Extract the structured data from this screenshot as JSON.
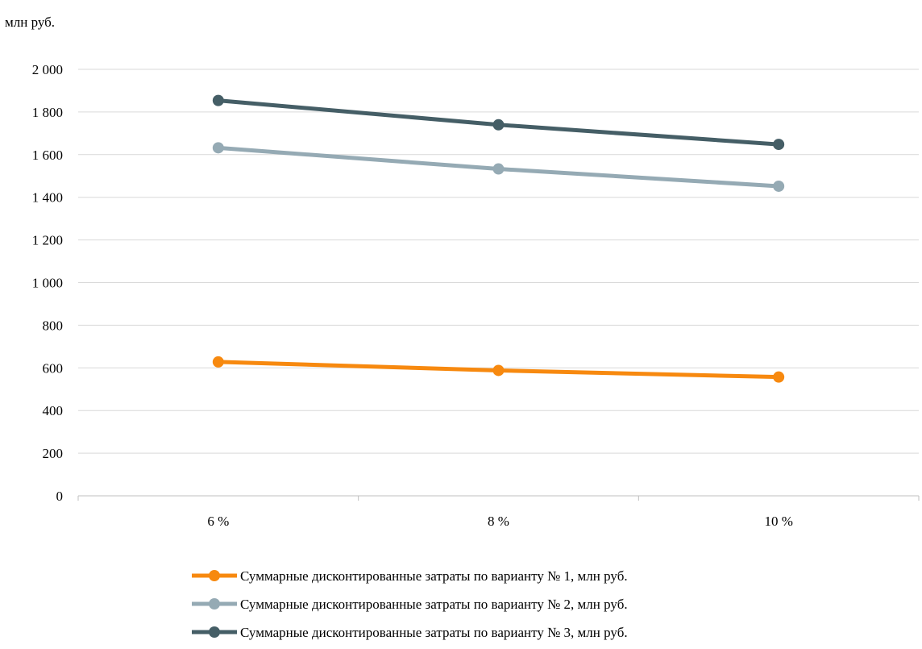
{
  "chart_data": {
    "type": "line",
    "unit_label": "млн руб.",
    "categories": [
      "6 %",
      "8 %",
      "10 %"
    ],
    "ylim": [
      0,
      2000
    ],
    "yticks": [
      0,
      200,
      400,
      600,
      800,
      1000,
      1200,
      1400,
      1600,
      1800,
      2000
    ],
    "ytick_labels": [
      "0",
      "200",
      "400",
      "600",
      "800",
      "1 000",
      "1 200",
      "1 400",
      "1 600",
      "1 800",
      "2 000"
    ],
    "grid": true,
    "legend_position": "bottom",
    "series": [
      {
        "name": "Суммарные дисконтированные затраты по варианту № 1, млн руб.",
        "color": "#F7890F",
        "values": [
          628,
          588,
          557
        ]
      },
      {
        "name": "Суммарные дисконтированные затраты по варианту № 2, млн руб.",
        "color": "#95AAB4",
        "values": [
          1632,
          1533,
          1452
        ]
      },
      {
        "name": "Суммарные дисконтированные затраты по варианту № 3, млн руб.",
        "color": "#455E66",
        "values": [
          1854,
          1740,
          1648
        ]
      }
    ]
  }
}
